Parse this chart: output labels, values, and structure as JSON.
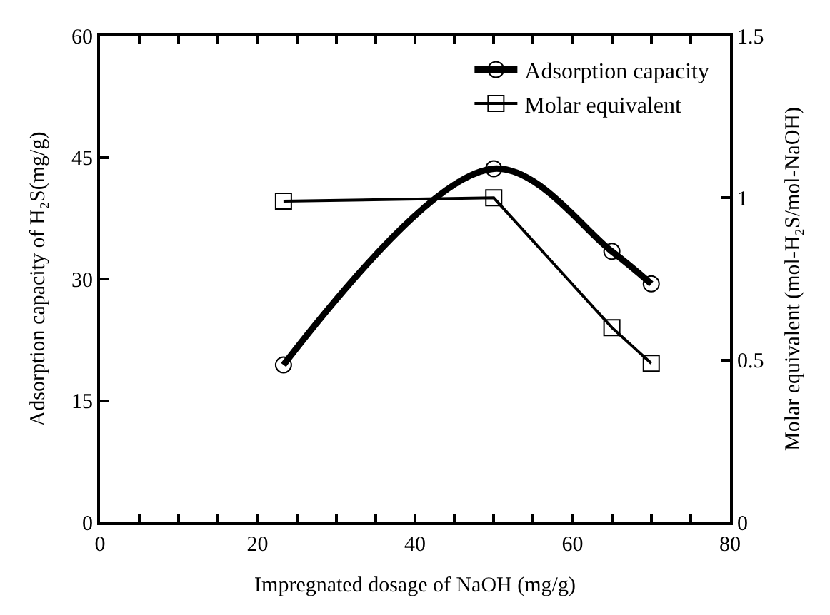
{
  "chart_data": {
    "type": "line",
    "xlabel": "Impregnated dosage of NaOH (mg/g)",
    "ylabel": "Adsorption capacity of H₂S(mg/g)",
    "y2label": "Molar equivalent (mol-H₂S/mol-NaOH)",
    "xlim": [
      0,
      80
    ],
    "xticks": [
      0,
      {
        "value": 5,
        "label": null
      },
      {
        "value": 10,
        "label": null
      },
      {
        "value": 15,
        "label": null
      },
      20,
      {
        "value": 25,
        "label": null
      },
      {
        "value": 30,
        "label": null
      },
      {
        "value": 35,
        "label": null
      },
      40,
      {
        "value": 45,
        "label": null
      },
      {
        "value": 50,
        "label": null
      },
      {
        "value": 55,
        "label": null
      },
      60,
      {
        "value": 65,
        "label": null
      },
      {
        "value": 70,
        "label": null
      },
      {
        "value": 75,
        "label": null
      },
      80
    ],
    "ylim": [
      0,
      60
    ],
    "yticks": [
      0,
      15,
      30,
      45,
      60
    ],
    "y2lim": [
      0,
      1.5
    ],
    "y2ticks": [
      0,
      0.5,
      1,
      1.5
    ],
    "legend": "top right",
    "series": [
      {
        "name": "Adsorption capacity",
        "color": "#000000",
        "marker": "circle",
        "x": [
          23.3,
          50,
          65,
          70
        ],
        "values": [
          19.4,
          43.6,
          33.4,
          29.4
        ]
      },
      {
        "name": "Molar equivalent",
        "color": "#000000",
        "marker": "square",
        "axis": "y2",
        "x": [
          23.3,
          50,
          65,
          70
        ],
        "values": [
          0.99,
          1.0,
          0.6,
          0.49
        ]
      }
    ]
  }
}
